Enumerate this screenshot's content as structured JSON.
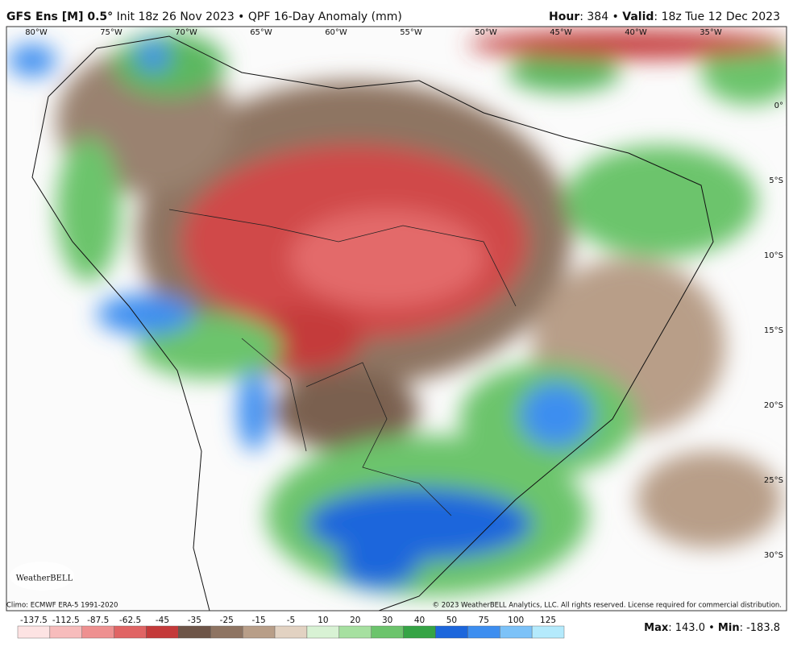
{
  "header": {
    "title_bold": "GFS Ens [M] 0.5°",
    "title_rest": "Init 18z 26 Nov 2023 • QPF 16-Day Anomaly (mm)",
    "hour_label": "Hour",
    "hour_value": ": 384 •",
    "valid_label": "Valid",
    "valid_value": ": 18z Tue 12 Dec 2023"
  },
  "map": {
    "longitudes": [
      "80°W",
      "75°W",
      "70°W",
      "65°W",
      "60°W",
      "55°W",
      "50°W",
      "45°W",
      "40°W",
      "35°W"
    ],
    "latitudes": [
      "0°",
      "5°S",
      "10°S",
      "15°S",
      "20°S",
      "25°S",
      "30°S"
    ],
    "logo": "WeatherBELL"
  },
  "footer": {
    "climo": "Climo: ECMWF ERA-5 1991-2020",
    "copyright": "© 2023 WeatherBELL Analytics, LLC. All rights reserved. License required for commercial distribution.",
    "max_label": "Max",
    "max_value": ": 143.0 •",
    "min_label": "Min",
    "min_value": ": -183.8"
  },
  "colorbar": {
    "labels": [
      "-137.5",
      "-112.5",
      "-87.5",
      "-62.5",
      "-45",
      "-35",
      "-25",
      "-15",
      "-5",
      "10",
      "20",
      "30",
      "40",
      "50",
      "75",
      "100",
      "125"
    ],
    "colors": [
      "#fde3e3",
      "#f7bcbc",
      "#ee9090",
      "#e06464",
      "#c43a3a",
      "#6e5548",
      "#8e7462",
      "#b89e88",
      "#e2d2c2",
      "#d8f2d4",
      "#a6e0a0",
      "#6cc46c",
      "#35a445",
      "#1c66dc",
      "#3d8ef0",
      "#7cc2f8",
      "#b4eafc"
    ]
  }
}
